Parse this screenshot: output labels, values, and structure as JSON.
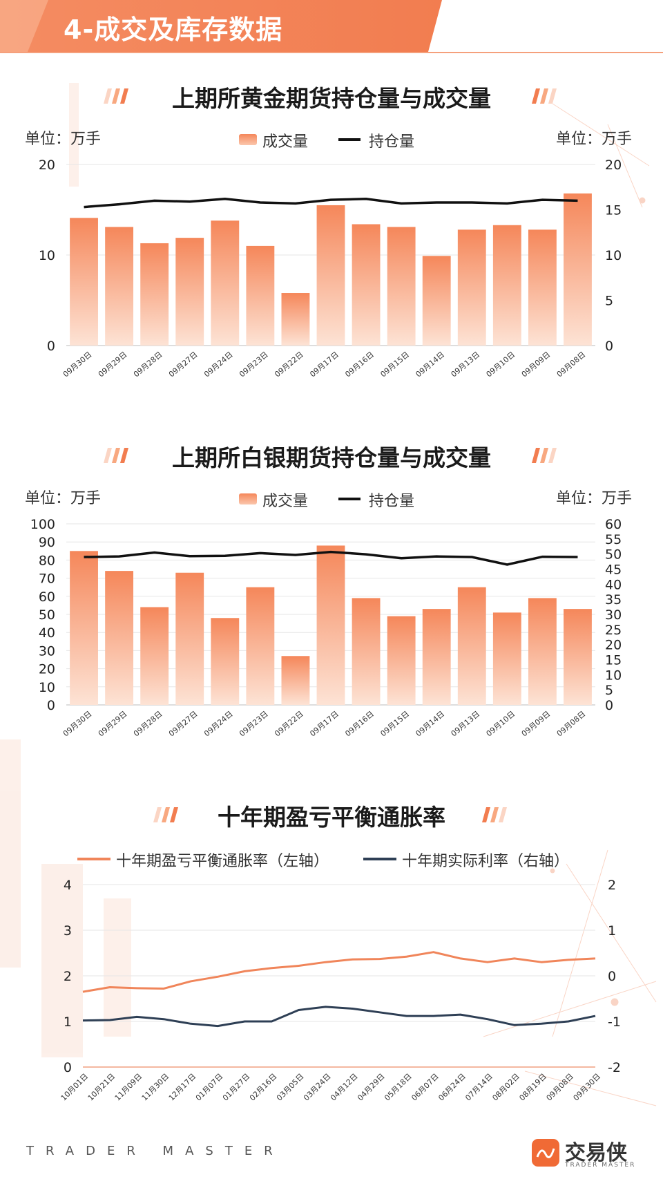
{
  "header": {
    "title": "4-成交及库存数据"
  },
  "colors": {
    "accent": "#f27d50",
    "bar_top": "#f5875a",
    "bar_bottom": "#fde3d5",
    "line_dark": "#111111",
    "breakeven": "#f0855a",
    "real_rate": "#2e3f55"
  },
  "gold": {
    "title": "上期所黄金期货持仓量与成交量",
    "unit_left": "单位：万手",
    "unit_right": "单位：万手",
    "legend_bar": "成交量",
    "legend_line": "持仓量"
  },
  "silver": {
    "title": "上期所白银期货持仓量与成交量",
    "unit_left": "单位：万手",
    "unit_right": "单位：万手",
    "legend_bar": "成交量",
    "legend_line": "持仓量"
  },
  "breakeven": {
    "title": "十年期盈亏平衡通胀率",
    "legend_left": "十年期盈亏平衡通胀率（左轴）",
    "legend_right": "十年期实际利率（右轴）"
  },
  "footer": {
    "brand": "TRADER MASTER",
    "logo_name": "交易侠",
    "logo_sub": "TRADER MASTER"
  },
  "chart_data": [
    {
      "type": "bar",
      "title": "上期所黄金期货持仓量与成交量",
      "categories": [
        "09月30日",
        "09月29日",
        "09月28日",
        "09月27日",
        "09月24日",
        "09月23日",
        "09月22日",
        "09月17日",
        "09月16日",
        "09月15日",
        "09月14日",
        "09月13日",
        "09月10日",
        "09月09日",
        "09月08日"
      ],
      "series": [
        {
          "name": "成交量",
          "type": "bar",
          "axis": "left",
          "values": [
            14.1,
            13.1,
            11.3,
            11.9,
            13.8,
            11.0,
            5.8,
            15.5,
            13.4,
            13.1,
            9.9,
            12.8,
            13.3,
            12.8,
            16.8
          ]
        },
        {
          "name": "持仓量",
          "type": "line",
          "axis": "right",
          "values": [
            15.3,
            15.6,
            16.0,
            15.9,
            16.2,
            15.8,
            15.7,
            16.1,
            16.2,
            15.7,
            15.8,
            15.8,
            15.7,
            16.1,
            16.0
          ]
        }
      ],
      "ylim_left": [
        0,
        20
      ],
      "yticks_left": [
        0,
        10,
        20
      ],
      "ylim_right": [
        0,
        20
      ],
      "yticks_right": [
        0,
        5,
        10,
        15,
        20
      ]
    },
    {
      "type": "bar",
      "title": "上期所白银期货持仓量与成交量",
      "categories": [
        "09月30日",
        "09月29日",
        "09月28日",
        "09月27日",
        "09月24日",
        "09月23日",
        "09月22日",
        "09月17日",
        "09月16日",
        "09月15日",
        "09月14日",
        "09月13日",
        "09月10日",
        "09月09日",
        "09月08日"
      ],
      "series": [
        {
          "name": "成交量",
          "type": "bar",
          "axis": "left",
          "values": [
            85,
            74,
            54,
            73,
            48,
            65,
            27,
            88,
            59,
            49,
            53,
            65,
            51,
            59,
            53
          ]
        },
        {
          "name": "持仓量",
          "type": "line",
          "axis": "right",
          "values": [
            49.0,
            49.2,
            50.5,
            49.3,
            49.4,
            50.3,
            49.7,
            50.7,
            49.9,
            48.6,
            49.2,
            49.0,
            46.5,
            49.1,
            49.0
          ]
        }
      ],
      "ylim_left": [
        0,
        100
      ],
      "yticks_left": [
        0,
        10,
        20,
        30,
        40,
        50,
        60,
        70,
        80,
        90,
        100
      ],
      "ylim_right": [
        0,
        60
      ],
      "yticks_right": [
        0,
        5,
        10,
        15,
        20,
        25,
        30,
        35,
        40,
        45,
        50,
        55,
        60
      ]
    },
    {
      "type": "line",
      "title": "十年期盈亏平衡通胀率",
      "x": [
        "10月01日",
        "10月21日",
        "11月09日",
        "11月30日",
        "12月17日",
        "01月07日",
        "01月27日",
        "02月16日",
        "03月05日",
        "03月24日",
        "04月12日",
        "04月29日",
        "05月18日",
        "06月07日",
        "06月24日",
        "07月14日",
        "08月02日",
        "08月19日",
        "09月08日",
        "09月30日"
      ],
      "series": [
        {
          "name": "十年期盈亏平衡通胀率（左轴）",
          "axis": "left",
          "values": [
            1.65,
            1.75,
            1.73,
            1.72,
            1.88,
            1.98,
            2.1,
            2.17,
            2.22,
            2.3,
            2.36,
            2.37,
            2.42,
            2.52,
            2.38,
            2.3,
            2.38,
            2.3,
            2.35,
            2.38
          ]
        },
        {
          "name": "十年期实际利率（右轴）",
          "axis": "right",
          "values": [
            -0.98,
            -0.97,
            -0.9,
            -0.95,
            -1.05,
            -1.1,
            -1.0,
            -1.0,
            -0.75,
            -0.68,
            -0.72,
            -0.8,
            -0.88,
            -0.88,
            -0.85,
            -0.95,
            -1.08,
            -1.05,
            -1.0,
            -0.88
          ]
        }
      ],
      "ylim_left": [
        0,
        4
      ],
      "yticks_left": [
        0,
        1,
        2,
        3,
        4
      ],
      "ylim_right": [
        -2,
        2
      ],
      "yticks_right": [
        -2,
        -1,
        0,
        1,
        2
      ]
    }
  ]
}
